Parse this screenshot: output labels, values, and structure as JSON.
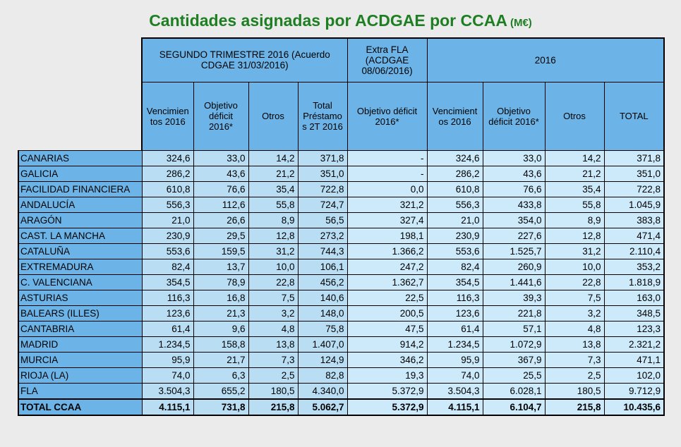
{
  "title": {
    "main": "Cantidades asignadas por ACDGAE por CCAA",
    "unit": "(M€)"
  },
  "colors": {
    "background": "#ebebeb",
    "title_green": "#1e7e22",
    "header_blue": "#6cb4e7",
    "cell_blue": "#b9def4",
    "cell_blue_light": "#cdeafb",
    "border": "#000000"
  },
  "table": {
    "group_headers": [
      {
        "label": "SEGUNDO TRIMESTRE 2016  (Acuerdo CDGAE 31/03/2016)",
        "colspan": 4
      },
      {
        "label": "Extra FLA (ACDGAE 08/06/2016)",
        "colspan": 1
      },
      {
        "label": "2016",
        "colspan": 4
      }
    ],
    "column_headers": [
      "Vencimientos 2016",
      "Objetivo déficit 2016*",
      "Otros",
      "Total Préstamos 2T 2016",
      "Objetivo déficit 2016*",
      "Vencimientos 2016",
      "Objetivo déficit 2016*",
      "Otros",
      "TOTAL"
    ],
    "rows": [
      {
        "label": "CANARIAS",
        "values": [
          "324,6",
          "33,0",
          "14,2",
          "371,8",
          "-",
          "324,6",
          "33,0",
          "14,2",
          "371,8"
        ]
      },
      {
        "label": "GALICIA",
        "values": [
          "286,2",
          "43,6",
          "21,2",
          "351,0",
          "-",
          "286,2",
          "43,6",
          "21,2",
          "351,0"
        ]
      },
      {
        "label": "FACILIDAD FINANCIERA",
        "values": [
          "610,8",
          "76,6",
          "35,4",
          "722,8",
          "0,0",
          "610,8",
          "76,6",
          "35,4",
          "722,8"
        ]
      },
      {
        "label": "ANDALUCÍA",
        "values": [
          "556,3",
          "112,6",
          "55,8",
          "724,7",
          "321,2",
          "556,3",
          "433,8",
          "55,8",
          "1.045,9"
        ]
      },
      {
        "label": "ARAGÓN",
        "values": [
          "21,0",
          "26,6",
          "8,9",
          "56,5",
          "327,4",
          "21,0",
          "354,0",
          "8,9",
          "383,8"
        ]
      },
      {
        "label": "CAST. LA MANCHA",
        "values": [
          "230,9",
          "29,5",
          "12,8",
          "273,2",
          "198,1",
          "230,9",
          "227,6",
          "12,8",
          "471,4"
        ]
      },
      {
        "label": "CATALUÑA",
        "values": [
          "553,6",
          "159,5",
          "31,2",
          "744,3",
          "1.366,2",
          "553,6",
          "1.525,7",
          "31,2",
          "2.110,4"
        ]
      },
      {
        "label": "EXTREMADURA",
        "values": [
          "82,4",
          "13,7",
          "10,0",
          "106,1",
          "247,2",
          "82,4",
          "260,9",
          "10,0",
          "353,2"
        ]
      },
      {
        "label": "C. VALENCIANA",
        "values": [
          "354,5",
          "78,9",
          "22,8",
          "456,2",
          "1.362,7",
          "354,5",
          "1.441,6",
          "22,8",
          "1.818,9"
        ]
      },
      {
        "label": "ASTURIAS",
        "values": [
          "116,3",
          "16,8",
          "7,5",
          "140,6",
          "22,5",
          "116,3",
          "39,3",
          "7,5",
          "163,0"
        ]
      },
      {
        "label": "BALEARS (ILLES)",
        "values": [
          "123,6",
          "21,3",
          "3,2",
          "148,0",
          "200,5",
          "123,6",
          "221,8",
          "3,2",
          "348,5"
        ]
      },
      {
        "label": "CANTABRIA",
        "values": [
          "61,4",
          "9,6",
          "4,8",
          "75,8",
          "47,5",
          "61,4",
          "57,1",
          "4,8",
          "123,3"
        ]
      },
      {
        "label": "MADRID",
        "values": [
          "1.234,5",
          "158,8",
          "13,8",
          "1.407,0",
          "914,2",
          "1.234,5",
          "1.072,9",
          "13,8",
          "2.321,2"
        ]
      },
      {
        "label": "MURCIA",
        "values": [
          "95,9",
          "21,7",
          "7,3",
          "124,9",
          "346,2",
          "95,9",
          "367,9",
          "7,3",
          "471,1"
        ]
      },
      {
        "label": "RIOJA (LA)",
        "values": [
          "74,0",
          "6,3",
          "2,5",
          "82,8",
          "19,3",
          "74,0",
          "25,5",
          "2,5",
          "102,0"
        ]
      },
      {
        "label": "FLA",
        "values": [
          "3.504,3",
          "655,2",
          "180,5",
          "4.340,0",
          "5.372,9",
          "3.504,3",
          "6.028,1",
          "180,5",
          "9.712,9"
        ]
      },
      {
        "label": "TOTAL CCAA",
        "bold": true,
        "values": [
          "4.115,1",
          "731,8",
          "215,8",
          "5.062,7",
          "5.372,9",
          "4.115,1",
          "6.104,7",
          "215,8",
          "10.435,6"
        ]
      }
    ]
  }
}
